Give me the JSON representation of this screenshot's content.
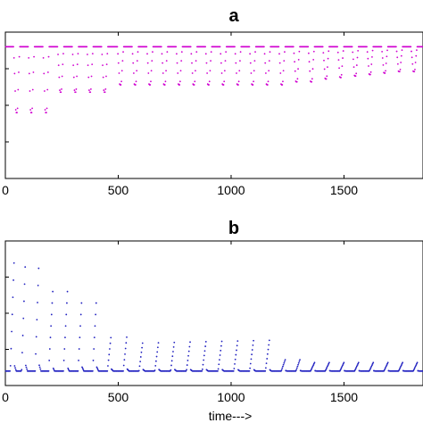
{
  "chart_data": [
    {
      "type": "scatter",
      "title": "a",
      "xlabel": "",
      "ylabel": "",
      "xlim": [
        0,
        1850
      ],
      "xticks": [
        0,
        500,
        1000,
        1500
      ],
      "xtick_labels": [
        "0",
        "500",
        "1000",
        "1500"
      ],
      "grid": false,
      "color": "#d000d0",
      "series": [
        {
          "baseline": 0.9,
          "ylim": [
            0,
            1
          ],
          "dips": [
            {
              "x": 50,
              "depth": 0.45
            },
            {
              "x": 115,
              "depth": 0.45
            },
            {
              "x": 180,
              "depth": 0.45
            },
            {
              "x": 245,
              "depth": 0.31
            },
            {
              "x": 310,
              "depth": 0.31
            },
            {
              "x": 375,
              "depth": 0.31
            },
            {
              "x": 440,
              "depth": 0.31
            },
            {
              "x": 510,
              "depth": 0.26
            },
            {
              "x": 575,
              "depth": 0.26
            },
            {
              "x": 640,
              "depth": 0.26
            },
            {
              "x": 705,
              "depth": 0.26
            },
            {
              "x": 770,
              "depth": 0.26
            },
            {
              "x": 835,
              "depth": 0.26
            },
            {
              "x": 900,
              "depth": 0.26
            },
            {
              "x": 965,
              "depth": 0.26
            },
            {
              "x": 1030,
              "depth": 0.26
            },
            {
              "x": 1095,
              "depth": 0.26
            },
            {
              "x": 1160,
              "depth": 0.26
            },
            {
              "x": 1225,
              "depth": 0.26
            },
            {
              "x": 1290,
              "depth": 0.24
            },
            {
              "x": 1355,
              "depth": 0.24
            },
            {
              "x": 1420,
              "depth": 0.22
            },
            {
              "x": 1485,
              "depth": 0.21
            },
            {
              "x": 1550,
              "depth": 0.2
            },
            {
              "x": 1615,
              "depth": 0.19
            },
            {
              "x": 1680,
              "depth": 0.18
            },
            {
              "x": 1745,
              "depth": 0.17
            },
            {
              "x": 1810,
              "depth": 0.17
            }
          ]
        }
      ]
    },
    {
      "type": "scatter",
      "title": "b",
      "xlabel": "time--->",
      "ylabel": "",
      "xlim": [
        0,
        1850
      ],
      "xticks": [
        0,
        500,
        1000,
        1500
      ],
      "xtick_labels": [
        "0",
        "500",
        "1000",
        "1500"
      ],
      "grid": false,
      "color": "#2020c0",
      "series": [
        {
          "baseline": 0.1,
          "ylim": [
            0,
            1
          ],
          "spikes": [
            {
              "x": 40,
              "height": 0.82
            },
            {
              "x": 90,
              "height": 0.82
            },
            {
              "x": 150,
              "height": 0.82
            },
            {
              "x": 210,
              "height": 0.55
            },
            {
              "x": 275,
              "height": 0.55
            },
            {
              "x": 340,
              "height": 0.55
            },
            {
              "x": 405,
              "height": 0.55
            },
            {
              "x": 470,
              "height": 0.27
            },
            {
              "x": 540,
              "height": 0.27
            },
            {
              "x": 610,
              "height": 0.22
            },
            {
              "x": 680,
              "height": 0.22
            },
            {
              "x": 750,
              "height": 0.22
            },
            {
              "x": 820,
              "height": 0.22
            },
            {
              "x": 890,
              "height": 0.22
            },
            {
              "x": 960,
              "height": 0.22
            },
            {
              "x": 1030,
              "height": 0.22
            },
            {
              "x": 1100,
              "height": 0.22
            },
            {
              "x": 1170,
              "height": 0.22
            },
            {
              "x": 1240,
              "height": 0.08
            },
            {
              "x": 1305,
              "height": 0.08
            },
            {
              "x": 1370,
              "height": 0.06
            },
            {
              "x": 1435,
              "height": 0.06
            },
            {
              "x": 1500,
              "height": 0.06
            },
            {
              "x": 1565,
              "height": 0.06
            },
            {
              "x": 1630,
              "height": 0.06
            },
            {
              "x": 1695,
              "height": 0.06
            },
            {
              "x": 1760,
              "height": 0.06
            },
            {
              "x": 1825,
              "height": 0.06
            }
          ]
        }
      ]
    }
  ]
}
